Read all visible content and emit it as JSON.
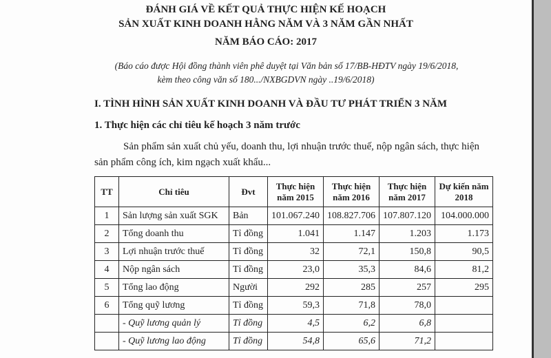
{
  "header": {
    "title_lines": [
      "ĐÁNH GIÁ VỀ KẾT QUẢ THỰC HIỆN KẾ HOẠCH",
      "SẢN XUẤT KINH DOANH HẰNG NĂM VÀ 3 NĂM GẦN NHẤT"
    ],
    "report_year": "NĂM BÁO CÁO: 2017",
    "note_lines": [
      "(Báo cáo được Hội đồng thành viên phê duyệt tại Văn bản số 17/BB-HĐTV ngày 19/6/2018,",
      "kèm theo công văn số 180.../NXBGDVN ngày ..19/6/2018)"
    ]
  },
  "section": {
    "heading": "I. TÌNH HÌNH SẢN XUẤT KINH DOANH VÀ ĐẦU TƯ PHÁT TRIỂN 3 NĂM",
    "subheading": "1. Thực hiện các chỉ tiêu kế hoạch 3 năm trước",
    "paragraph": "Sản phẩm sản xuất chủ yếu, doanh thu, lợi nhuận trước thuế, nộp ngân sách, thực hiện sản phẩm công ích, kim ngạch xuất khẩu..."
  },
  "table": {
    "columns": [
      "TT",
      "Chỉ tiêu",
      "Đvt",
      "Thực hiện năm 2015",
      "Thực hiện năm 2016",
      "Thực hiện năm 2017",
      "Dự kiến năm 2018"
    ],
    "rows": [
      [
        "1",
        "Sản lượng sản xuất SGK",
        "Bản",
        "101.067.240",
        "108.827.706",
        "107.807.120",
        "104.000.000"
      ],
      [
        "2",
        "Tổng doanh thu",
        "Tỉ đồng",
        "1.041",
        "1.147",
        "1.203",
        "1.173"
      ],
      [
        "3",
        "Lợi nhuận trước thuế",
        "Tỉ đồng",
        "32",
        "72,1",
        "150,8",
        "90,5"
      ],
      [
        "4",
        "Nộp ngân sách",
        "Tỉ đồng",
        "23,0",
        "35,3",
        "84,6",
        "81,2"
      ],
      [
        "5",
        "Tổng lao động",
        "Người",
        "292",
        "285",
        "257",
        "295"
      ],
      [
        "6",
        "Tổng quỹ lương",
        "Tỉ đồng",
        "59,3",
        "71,8",
        "78,0",
        null
      ],
      [
        null,
        "- Quỹ lương quản lý",
        "Tỉ đồng",
        "4,5",
        "6,2",
        "6,8",
        null
      ],
      [
        null,
        "- Quỹ lương lao động",
        "Tỉ đồng",
        "54,8",
        "65,6",
        "71,2",
        null
      ]
    ]
  }
}
